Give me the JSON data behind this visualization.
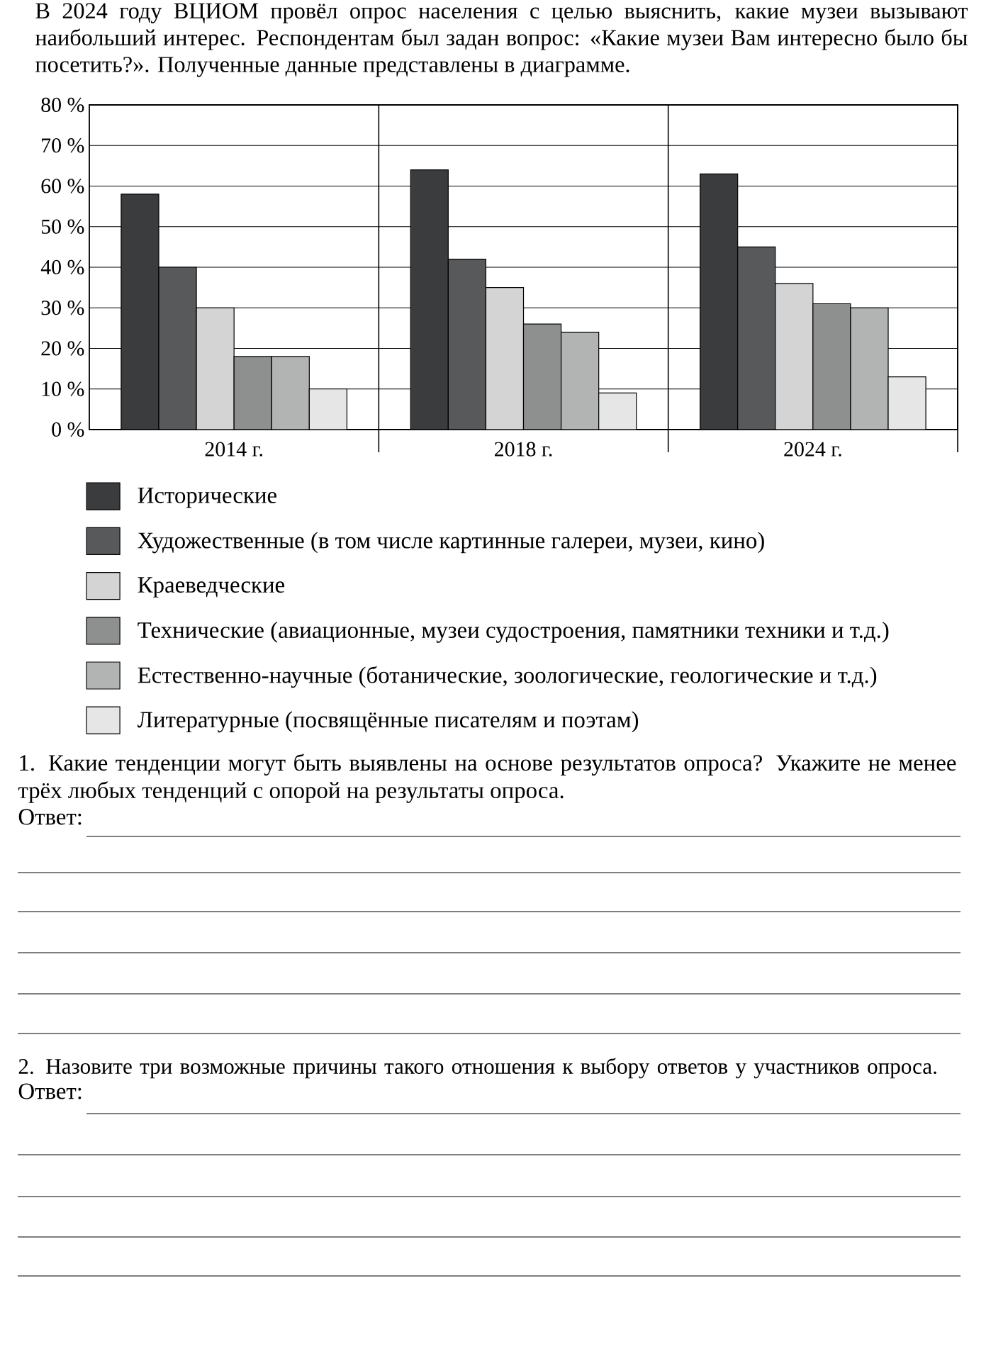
{
  "chart_data": {
    "type": "bar",
    "title": "В 2024 году ВЦИОМ провёл опрос населения с целью выяснить, какие музеи вызывают наибольший интерес. Респондентам был задан вопрос: «Какие музеи Вам интересно было бы посетить?». Полученные данные представлены в диаграмме.",
    "categories": [
      "2014 г.",
      "2018 г.",
      "2024 г."
    ],
    "series": [
      {
        "name": "Исторические",
        "color": "#3a3c3e",
        "values": [
          58,
          64,
          63
        ]
      },
      {
        "name": "Художественные (в том числе картинные галереи, музеи, кино)",
        "color": "#58595b",
        "values": [
          40,
          42,
          45
        ]
      },
      {
        "name": "Краеведческие",
        "color": "#d4d4d4",
        "values": [
          30,
          35,
          36
        ]
      },
      {
        "name": "Технические (авиационные, музеи судостроения, памятники техники и т.д.)",
        "color": "#8e9090",
        "values": [
          18,
          26,
          31
        ]
      },
      {
        "name": "Естественно-научные (ботанические, зоологические, геологические и т.д.)",
        "color": "#b2b4b4",
        "values": [
          18,
          24,
          30
        ]
      },
      {
        "name": "Литературные (посвящённые писателям и поэтам)",
        "color": "#e6e6e6",
        "values": [
          10,
          9,
          13
        ]
      }
    ],
    "ylim": [
      0,
      80
    ],
    "yticks": [
      {
        "value": 0,
        "label": "0 %"
      },
      {
        "value": 10,
        "label": "10 %"
      },
      {
        "value": 20,
        "label": "20 %"
      },
      {
        "value": 30,
        "label": "30 %"
      },
      {
        "value": 40,
        "label": "40 %"
      },
      {
        "value": 50,
        "label": "50 %"
      },
      {
        "value": 60,
        "label": "60 %"
      },
      {
        "value": 70,
        "label": "70 %"
      },
      {
        "value": 80,
        "label": "80 %"
      }
    ],
    "grid": "y",
    "legend": "bottom",
    "annotations": [
      "1. Какие тенденции могут быть выявлены на основе результатов опроса? Укажите не менее трёх любых тенденций с опорой на результаты опроса.",
      "Ответ:",
      "2. Назовите три возможные причины такого отношения к выбору ответов у участников опроса.",
      "Ответ:"
    ]
  }
}
